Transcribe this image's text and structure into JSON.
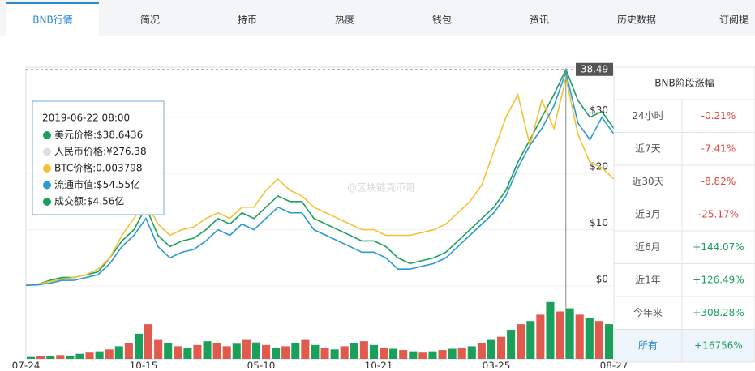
{
  "tabs": [
    "BNB行情",
    "简况",
    "持币",
    "热度",
    "钱包",
    "资讯",
    "历史数据",
    "订阅提"
  ],
  "watermark": "@区块链克币哥",
  "chart_data": [
    {
      "type": "line",
      "ylim": [
        0,
        38.6
      ],
      "yticks": [
        {
          "value": 0,
          "label": "$0"
        },
        {
          "value": 10,
          "label": "$10"
        },
        {
          "value": 20,
          "label": "$20"
        },
        {
          "value": 30,
          "label": "$30"
        }
      ],
      "xticks": [
        "07-24",
        "10-15",
        "05-10",
        "10-21",
        "03-25",
        "08-27"
      ],
      "max_label": "38.49",
      "series": [
        {
          "name": "美元价格",
          "color": "#1aa05a",
          "values": [
            0.2,
            0.3,
            1,
            1.5,
            1.5,
            2,
            2.5,
            5,
            8,
            10,
            14,
            9,
            7,
            8,
            8.5,
            10,
            12,
            11,
            13,
            12,
            14,
            16,
            15,
            15,
            12,
            11,
            10,
            9,
            8,
            8,
            7,
            5,
            4,
            4.5,
            5,
            6,
            8,
            10,
            12,
            14,
            17,
            22,
            26,
            30,
            34,
            38.49,
            33,
            30,
            31,
            28
          ]
        },
        {
          "name": "BTC价格",
          "color": "#f3c234",
          "values": [
            0.2,
            0.3,
            0.8,
            1.2,
            1.5,
            2,
            3,
            5,
            9,
            12,
            15,
            11,
            9,
            10,
            10.5,
            12,
            13,
            12,
            14,
            14,
            17,
            19,
            17,
            16,
            14,
            13,
            12,
            11,
            10,
            10,
            9,
            9,
            9,
            9.5,
            10,
            11,
            13,
            15,
            18,
            24,
            30,
            34,
            25,
            33,
            28,
            37,
            27,
            22,
            21,
            19
          ]
        },
        {
          "name": "流通市值",
          "color": "#2a9ad0",
          "values": [
            0.1,
            0.2,
            0.5,
            1,
            1,
            1.5,
            2,
            4,
            7,
            9,
            12,
            7,
            5,
            6,
            6.5,
            8,
            10,
            9,
            11,
            10,
            12,
            14,
            13,
            13,
            10,
            9,
            8,
            7,
            6,
            6,
            5,
            3,
            3,
            3.5,
            4,
            5,
            7,
            9,
            11,
            13,
            16,
            21,
            25,
            28,
            32,
            38,
            29,
            26,
            30,
            27
          ]
        }
      ],
      "tooltip": {
        "date": "2019-06-22 08:00",
        "items": [
          {
            "text": "美元价格:$38.6436",
            "color": "#1aa05a"
          },
          {
            "text": "人民币价格:¥276.38",
            "color": "#dddddd"
          },
          {
            "text": "BTC价格:0.003798",
            "color": "#f3c234"
          },
          {
            "text": "流通市值:$54.55亿",
            "color": "#2a9ad0"
          },
          {
            "text": "成交额:$4.56亿",
            "color": "#1aa05a"
          }
        ]
      }
    },
    {
      "type": "bar",
      "ylim": [
        0,
        100
      ],
      "values": [
        3,
        4,
        5,
        6,
        5,
        8,
        10,
        12,
        15,
        20,
        25,
        40,
        55,
        30,
        25,
        20,
        18,
        22,
        28,
        25,
        20,
        24,
        30,
        26,
        22,
        18,
        20,
        25,
        30,
        22,
        18,
        15,
        20,
        25,
        28,
        22,
        18,
        16,
        14,
        12,
        10,
        12,
        14,
        16,
        18,
        20,
        25,
        30,
        35,
        45,
        55,
        60,
        70,
        90,
        75,
        80,
        70,
        65,
        60,
        55
      ],
      "colors": [
        "#1aa05a",
        "#e05a4e",
        "#1aa05a",
        "#e05a4e",
        "#1aa05a",
        "#1aa05a",
        "#e05a4e",
        "#1aa05a",
        "#e05a4e",
        "#1aa05a",
        "#e05a4e",
        "#1aa05a",
        "#e05a4e",
        "#e05a4e",
        "#1aa05a",
        "#e05a4e",
        "#1aa05a",
        "#e05a4e",
        "#1aa05a",
        "#e05a4e",
        "#e05a4e",
        "#1aa05a",
        "#e05a4e",
        "#1aa05a",
        "#e05a4e",
        "#1aa05a",
        "#e05a4e",
        "#1aa05a",
        "#e05a4e",
        "#1aa05a",
        "#e05a4e",
        "#1aa05a",
        "#e05a4e",
        "#1aa05a",
        "#e05a4e",
        "#1aa05a",
        "#e05a4e",
        "#1aa05a",
        "#e05a4e",
        "#1aa05a",
        "#e05a4e",
        "#1aa05a",
        "#e05a4e",
        "#1aa05a",
        "#e05a4e",
        "#1aa05a",
        "#e05a4e",
        "#1aa05a",
        "#e05a4e",
        "#1aa05a",
        "#e05a4e",
        "#1aa05a",
        "#e05a4e",
        "#1aa05a",
        "#e05a4e",
        "#1aa05a",
        "#e05a4e",
        "#1aa05a",
        "#e05a4e",
        "#1aa05a"
      ]
    }
  ],
  "table": {
    "title": "BNB阶段涨幅",
    "rows": [
      [
        "24小时",
        "-0.21%"
      ],
      [
        "近7天",
        "-7.41%"
      ],
      [
        "近30天",
        "-8.82%"
      ],
      [
        "近3月",
        "-25.17%"
      ],
      [
        "近6月",
        "+144.07%"
      ],
      [
        "近1年",
        "+126.49%"
      ],
      [
        "今年来",
        "+308.28%"
      ],
      [
        "所有",
        "+16756%"
      ]
    ]
  }
}
